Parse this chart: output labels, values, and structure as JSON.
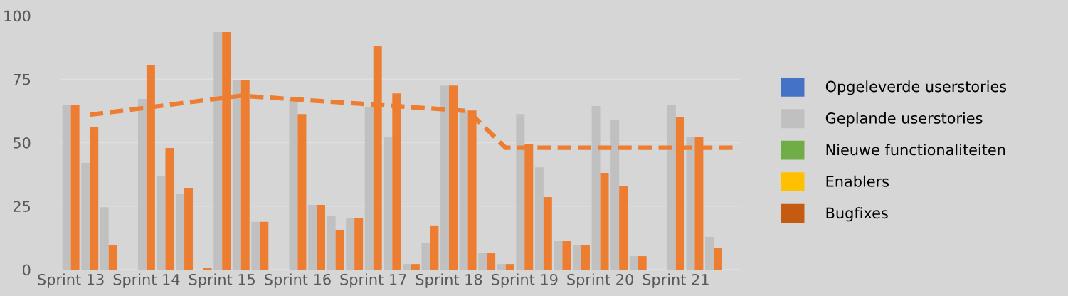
{
  "chart_data": {
    "type": "bar",
    "categories": [
      "Sprint 13",
      null,
      null,
      null,
      "Sprint 14",
      null,
      null,
      null,
      "Sprint 15",
      null,
      null,
      null,
      "Sprint 16",
      null,
      null,
      null,
      "Sprint 17",
      null,
      null,
      null,
      "Sprint 18",
      null,
      null,
      null,
      "Sprint 19",
      null,
      null,
      null,
      "Sprint 20",
      null,
      null,
      null,
      "Sprint 21",
      null,
      null,
      null
    ],
    "series": [
      {
        "name": "Opgeleverde userstories",
        "color": "#4472c4",
        "values": [
          null,
          null,
          null,
          null,
          null,
          null,
          null,
          null,
          null,
          null,
          null,
          null,
          null,
          null,
          null,
          null,
          null,
          null,
          null,
          null,
          null,
          null,
          null,
          null,
          null,
          null,
          null,
          null,
          null,
          null,
          null,
          null,
          null,
          null,
          null,
          null
        ]
      },
      {
        "name": "Geplande userstories",
        "color": "#c0c0c0",
        "values": [
          65,
          42,
          24.6,
          null,
          67.2,
          36.7,
          30,
          0,
          93.6,
          74.8,
          18.8,
          null,
          66.7,
          25.5,
          21,
          20.2,
          64,
          52.4,
          2.2,
          10.6,
          72.5,
          62.7,
          6.7,
          2.2,
          61.3,
          40.3,
          11.2,
          9.8,
          64.4,
          59.1,
          5.3,
          null,
          65,
          52.4,
          12.9,
          null
        ]
      },
      {
        "name": "Nieuwe functionaliteiten",
        "color": "#70ad47",
        "values": [
          null,
          null,
          null,
          null,
          null,
          null,
          null,
          null,
          null,
          null,
          null,
          null,
          null,
          null,
          null,
          null,
          null,
          null,
          null,
          null,
          null,
          null,
          null,
          null,
          null,
          null,
          null,
          null,
          null,
          null,
          null,
          null,
          null,
          null,
          null,
          null
        ]
      },
      {
        "name": "Enablers",
        "color": "#ffc000",
        "values": [
          null,
          null,
          null,
          null,
          null,
          null,
          null,
          null,
          null,
          null,
          null,
          null,
          null,
          null,
          null,
          null,
          null,
          null,
          null,
          null,
          null,
          null,
          null,
          null,
          null,
          null,
          null,
          null,
          null,
          null,
          null,
          null,
          null,
          null,
          null,
          null
        ]
      },
      {
        "name": "Bugfixes",
        "color": "#c55a11",
        "values": [
          null,
          null,
          null,
          null,
          null,
          null,
          null,
          null,
          null,
          null,
          null,
          null,
          null,
          null,
          null,
          null,
          null,
          null,
          null,
          null,
          null,
          null,
          null,
          null,
          null,
          null,
          null,
          null,
          null,
          null,
          null,
          null,
          null,
          null,
          null,
          null
        ]
      },
      {
        "color": "#ed7d31",
        "values": [
          65,
          56,
          9.8,
          null,
          80.7,
          47.9,
          32.2,
          0.8,
          93.6,
          74.8,
          18.8,
          null,
          61.3,
          25.5,
          15.7,
          20.2,
          88.2,
          69.4,
          2.2,
          17.4,
          72.5,
          62.7,
          6.7,
          2.2,
          49.3,
          28.6,
          11.2,
          9.8,
          38.1,
          33,
          5.3,
          null,
          60,
          52.4,
          8.4,
          null
        ]
      },
      {
        "type": "line",
        "color": "#ed7d31",
        "line_style": "dashed",
        "values": [
          null,
          61,
          null,
          null,
          null,
          null,
          null,
          null,
          null,
          68.5,
          null,
          null,
          null,
          null,
          null,
          null,
          null,
          null,
          null,
          null,
          null,
          62.5,
          null,
          48,
          null,
          null,
          null,
          null,
          null,
          null,
          null,
          null,
          null,
          null,
          null,
          48
        ]
      }
    ],
    "ylim": [
      0,
      100
    ],
    "yticks": [
      0,
      25,
      50,
      75,
      100
    ],
    "grid": "y",
    "legend": "right"
  }
}
